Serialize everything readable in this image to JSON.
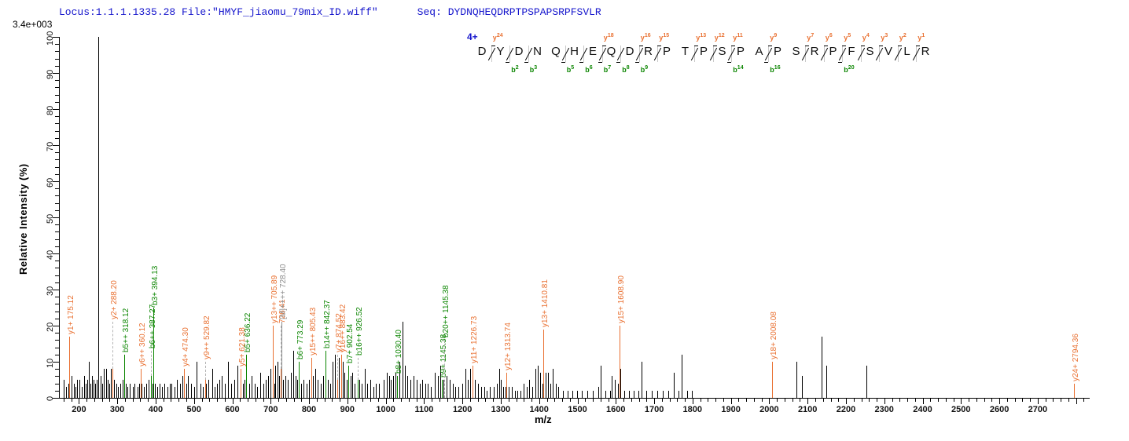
{
  "header": {
    "locus_file": "Locus:1.1.1.1335.28 File:\"HMYF_jiaomu_79mix_ID.wiff\"",
    "seq_label": "Seq:",
    "seq_value": "DYDNQHEQDRPTPSPAPSRPFSVLR"
  },
  "scale_label": "3.4e+003",
  "colors": {
    "header_text": "#1414cc",
    "y_ion": "#e97132",
    "b_ion": "#0b8500",
    "precursor": "#8c8c8c",
    "peak": "#000000",
    "axis": "#000000",
    "charge": "#1414cc",
    "connector": "#b4b4b4"
  },
  "peptide": {
    "charge_label": "4+",
    "residues": [
      "D",
      "Y",
      "D",
      "N",
      "Q",
      "H",
      "E",
      "Q",
      "D",
      "R",
      "P",
      "T",
      "P",
      "S",
      "P",
      "A",
      "P",
      "S",
      "R",
      "P",
      "F",
      "S",
      "V",
      "L",
      "R"
    ],
    "y_ions": [
      {
        "boundary": 1,
        "name": "y",
        "num": "24"
      },
      {
        "boundary": 7,
        "name": "y",
        "num": "18"
      },
      {
        "boundary": 9,
        "name": "y",
        "num": "16"
      },
      {
        "boundary": 10,
        "name": "y",
        "num": "15"
      },
      {
        "boundary": 12,
        "name": "y",
        "num": "13"
      },
      {
        "boundary": 13,
        "name": "y",
        "num": "12"
      },
      {
        "boundary": 14,
        "name": "y",
        "num": "11"
      },
      {
        "boundary": 16,
        "name": "y",
        "num": "9"
      },
      {
        "boundary": 18,
        "name": "y",
        "num": "7"
      },
      {
        "boundary": 19,
        "name": "y",
        "num": "6"
      },
      {
        "boundary": 20,
        "name": "y",
        "num": "5"
      },
      {
        "boundary": 21,
        "name": "y",
        "num": "4"
      },
      {
        "boundary": 22,
        "name": "y",
        "num": "3"
      },
      {
        "boundary": 23,
        "name": "y",
        "num": "2"
      },
      {
        "boundary": 24,
        "name": "y",
        "num": "1"
      }
    ],
    "b_ions": [
      {
        "boundary": 2,
        "name": "b",
        "num": "2"
      },
      {
        "boundary": 3,
        "name": "b",
        "num": "3"
      },
      {
        "boundary": 5,
        "name": "b",
        "num": "5"
      },
      {
        "boundary": 6,
        "name": "b",
        "num": "6"
      },
      {
        "boundary": 7,
        "name": "b",
        "num": "7"
      },
      {
        "boundary": 8,
        "name": "b",
        "num": "8"
      },
      {
        "boundary": 9,
        "name": "b",
        "num": "9"
      },
      {
        "boundary": 14,
        "name": "b",
        "num": "14"
      },
      {
        "boundary": 16,
        "name": "b",
        "num": "16"
      },
      {
        "boundary": 20,
        "name": "b",
        "num": "20"
      }
    ]
  },
  "axes": {
    "x_label": "m/z",
    "y_label": "Relative Intensity (%)",
    "x_min": 148,
    "x_max": 2835,
    "y_min": 0,
    "y_max": 100,
    "x_major_step": 100,
    "x_minor_step": 20,
    "y_major_step": 10,
    "y_minor_step": 2,
    "x_first_label": 200,
    "x_last_label": 2700
  },
  "chart_data": {
    "type": "bar",
    "subtype": "ms2-centroid-spectrum",
    "title": "",
    "xlabel": "m/z",
    "ylabel": "Relative Intensity (%)",
    "xlim": [
      148,
      2835
    ],
    "ylim": [
      0,
      100
    ],
    "base_peak_intensity_label": "3.4e+003",
    "legend": "off",
    "grid": "off",
    "annotated_peaks": [
      {
        "mz": 175.12,
        "intensity": 17,
        "label": "y1+ 175.12",
        "series": "y"
      },
      {
        "mz": 288.2,
        "intensity": 8,
        "label": "y2+ 288.20",
        "series": "y",
        "dashed": true,
        "label_start": 21
      },
      {
        "mz": 318.12,
        "intensity": 12,
        "label": "b5++ 318.12",
        "series": "b"
      },
      {
        "mz": 360.12,
        "intensity": 8,
        "label": "y6++ 360.12",
        "series": "y"
      },
      {
        "mz": 387.27,
        "intensity": 6,
        "label": "b6++ 387.27",
        "series": "b",
        "dashed": true,
        "label_start": 13
      },
      {
        "mz": 394.13,
        "intensity": 25,
        "label": "b3+ 394.13",
        "series": "b"
      },
      {
        "mz": 474.3,
        "intensity": 8,
        "label": "y4+ 474.30",
        "series": "y"
      },
      {
        "mz": 529.82,
        "intensity": 5,
        "label": "y9++ 529.82",
        "series": "y",
        "dashed": true,
        "label_start": 10
      },
      {
        "mz": 621.38,
        "intensity": 8,
        "label": "y5+ 621.38",
        "series": "y"
      },
      {
        "mz": 636.22,
        "intensity": 12,
        "label": "b5+ 636.22",
        "series": "b"
      },
      {
        "mz": 705.89,
        "intensity": 20,
        "label": "y13++ 705.89",
        "series": "y"
      },
      {
        "mz": 726.41,
        "intensity": 8,
        "label": "726.41",
        "series": "y",
        "dashed": true,
        "label_start": 20,
        "partially_obscured": true
      },
      {
        "mz": 728.4,
        "intensity": 21,
        "label": "[M]++++ 728.40",
        "series": "precursor"
      },
      {
        "mz": 773.29,
        "intensity": 10,
        "label": "b6+ 773.29",
        "series": "b"
      },
      {
        "mz": 805.43,
        "intensity": 11,
        "label": "y15++ 805.43",
        "series": "y"
      },
      {
        "mz": 842.37,
        "intensity": 13,
        "label": "b14++ 842.37",
        "series": "b"
      },
      {
        "mz": 874.52,
        "intensity": 5,
        "label": "y7+ 874.52",
        "series": "y",
        "dashed": true,
        "label_start": 12,
        "partially_obscured": true
      },
      {
        "mz": 883.42,
        "intensity": 12,
        "label": "y16++ 883.42",
        "series": "y"
      },
      {
        "mz": 902.54,
        "intensity": 9,
        "label": "b7+ 902.54",
        "series": "b"
      },
      {
        "mz": 926.52,
        "intensity": 5,
        "label": "b16++ 926.52",
        "series": "b",
        "dashed": true,
        "label_start": 11
      },
      {
        "mz": 1030.4,
        "intensity": 6,
        "label": "b8+ 1030.40",
        "series": "b"
      },
      {
        "mz": 1145.38,
        "intensity": 5,
        "label": "b9+ 1145.38",
        "series": "b"
      },
      {
        "mz": 1153.0,
        "intensity": 0,
        "label": "b20++ 1145.38",
        "series": "b",
        "label_start": 16,
        "label_only": true
      },
      {
        "mz": 1226.73,
        "intensity": 9,
        "label": "y11+ 1226.73",
        "series": "y"
      },
      {
        "mz": 1313.74,
        "intensity": 7,
        "label": "y12+ 1313.74",
        "series": "y"
      },
      {
        "mz": 1410.81,
        "intensity": 19,
        "label": "y13+ 1410.81",
        "series": "y"
      },
      {
        "mz": 1608.9,
        "intensity": 20,
        "label": "y15+ 1608.90",
        "series": "y"
      },
      {
        "mz": 2008.08,
        "intensity": 10,
        "label": "y18+ 2008.08",
        "series": "y"
      },
      {
        "mz": 2794.36,
        "intensity": 4,
        "label": "y24+ 2794.36",
        "series": "y"
      }
    ],
    "background_peaks": [
      [
        160,
        5
      ],
      [
        166,
        3
      ],
      [
        172,
        4
      ],
      [
        181,
        6
      ],
      [
        186,
        4
      ],
      [
        191,
        3
      ],
      [
        196,
        5
      ],
      [
        202,
        5
      ],
      [
        208,
        3
      ],
      [
        213,
        6
      ],
      [
        218,
        4
      ],
      [
        222,
        5
      ],
      [
        226,
        10
      ],
      [
        230,
        4
      ],
      [
        234,
        6
      ],
      [
        238,
        5
      ],
      [
        243,
        4
      ],
      [
        247,
        5
      ],
      [
        250,
        100
      ],
      [
        256,
        6
      ],
      [
        261,
        4
      ],
      [
        265,
        8
      ],
      [
        270,
        8
      ],
      [
        274,
        5
      ],
      [
        279,
        4
      ],
      [
        284,
        8
      ],
      [
        292,
        5
      ],
      [
        297,
        4
      ],
      [
        302,
        3
      ],
      [
        308,
        4
      ],
      [
        313,
        5
      ],
      [
        322,
        4
      ],
      [
        327,
        3
      ],
      [
        333,
        4
      ],
      [
        340,
        3
      ],
      [
        345,
        4
      ],
      [
        352,
        3
      ],
      [
        357,
        4
      ],
      [
        364,
        4
      ],
      [
        370,
        3
      ],
      [
        376,
        4
      ],
      [
        382,
        5
      ],
      [
        391,
        4
      ],
      [
        399,
        4
      ],
      [
        405,
        3
      ],
      [
        411,
        4
      ],
      [
        417,
        3
      ],
      [
        423,
        4
      ],
      [
        430,
        3
      ],
      [
        436,
        4
      ],
      [
        442,
        4
      ],
      [
        449,
        3
      ],
      [
        456,
        5
      ],
      [
        463,
        4
      ],
      [
        469,
        6
      ],
      [
        479,
        4
      ],
      [
        485,
        6
      ],
      [
        493,
        4
      ],
      [
        500,
        3
      ],
      [
        507,
        10
      ],
      [
        516,
        4
      ],
      [
        523,
        3
      ],
      [
        532,
        4
      ],
      [
        538,
        5
      ],
      [
        547,
        8
      ],
      [
        553,
        3
      ],
      [
        560,
        4
      ],
      [
        566,
        5
      ],
      [
        573,
        6
      ],
      [
        580,
        4
      ],
      [
        589,
        10
      ],
      [
        597,
        4
      ],
      [
        606,
        5
      ],
      [
        614,
        9
      ],
      [
        627,
        4
      ],
      [
        632,
        5
      ],
      [
        644,
        4
      ],
      [
        651,
        6
      ],
      [
        658,
        4
      ],
      [
        665,
        3
      ],
      [
        672,
        7
      ],
      [
        680,
        4
      ],
      [
        688,
        5
      ],
      [
        694,
        6
      ],
      [
        700,
        8
      ],
      [
        709,
        4
      ],
      [
        712,
        9
      ],
      [
        718,
        10
      ],
      [
        722,
        6
      ],
      [
        733,
        5
      ],
      [
        738,
        6
      ],
      [
        744,
        5
      ],
      [
        752,
        7
      ],
      [
        758,
        13
      ],
      [
        764,
        6
      ],
      [
        770,
        5
      ],
      [
        780,
        4
      ],
      [
        786,
        5
      ],
      [
        793,
        4
      ],
      [
        800,
        5
      ],
      [
        810,
        6
      ],
      [
        816,
        8
      ],
      [
        823,
        5
      ],
      [
        830,
        4
      ],
      [
        837,
        6
      ],
      [
        848,
        5
      ],
      [
        855,
        4
      ],
      [
        862,
        10
      ],
      [
        868,
        12
      ],
      [
        878,
        11
      ],
      [
        888,
        10
      ],
      [
        893,
        7
      ],
      [
        898,
        5
      ],
      [
        908,
        6
      ],
      [
        913,
        7
      ],
      [
        919,
        4
      ],
      [
        932,
        5
      ],
      [
        938,
        4
      ],
      [
        945,
        8
      ],
      [
        952,
        4
      ],
      [
        960,
        5
      ],
      [
        968,
        3
      ],
      [
        975,
        4
      ],
      [
        983,
        4
      ],
      [
        995,
        5
      ],
      [
        1002,
        7
      ],
      [
        1008,
        6
      ],
      [
        1014,
        5
      ],
      [
        1020,
        6
      ],
      [
        1026,
        7
      ],
      [
        1035,
        10
      ],
      [
        1043,
        21
      ],
      [
        1050,
        9
      ],
      [
        1057,
        6
      ],
      [
        1064,
        5
      ],
      [
        1072,
        6
      ],
      [
        1080,
        5
      ],
      [
        1088,
        4
      ],
      [
        1095,
        5
      ],
      [
        1103,
        4
      ],
      [
        1110,
        4
      ],
      [
        1118,
        3
      ],
      [
        1127,
        7
      ],
      [
        1135,
        6
      ],
      [
        1142,
        9
      ],
      [
        1150,
        5
      ],
      [
        1158,
        6
      ],
      [
        1166,
        5
      ],
      [
        1174,
        4
      ],
      [
        1182,
        3
      ],
      [
        1190,
        3
      ],
      [
        1199,
        4
      ],
      [
        1207,
        8
      ],
      [
        1213,
        5
      ],
      [
        1220,
        8
      ],
      [
        1232,
        5
      ],
      [
        1240,
        4
      ],
      [
        1248,
        3
      ],
      [
        1256,
        3
      ],
      [
        1264,
        2
      ],
      [
        1272,
        3
      ],
      [
        1281,
        3
      ],
      [
        1290,
        4
      ],
      [
        1295,
        8
      ],
      [
        1300,
        5
      ],
      [
        1306,
        3
      ],
      [
        1313,
        3
      ],
      [
        1320,
        3
      ],
      [
        1328,
        3
      ],
      [
        1336,
        2
      ],
      [
        1344,
        2
      ],
      [
        1352,
        2
      ],
      [
        1360,
        4
      ],
      [
        1367,
        3
      ],
      [
        1374,
        5
      ],
      [
        1382,
        3
      ],
      [
        1390,
        8
      ],
      [
        1396,
        9
      ],
      [
        1402,
        7
      ],
      [
        1408,
        4
      ],
      [
        1416,
        7
      ],
      [
        1424,
        7
      ],
      [
        1430,
        4
      ],
      [
        1436,
        8
      ],
      [
        1443,
        4
      ],
      [
        1450,
        3
      ],
      [
        1462,
        2
      ],
      [
        1474,
        2
      ],
      [
        1486,
        2
      ],
      [
        1498,
        2
      ],
      [
        1512,
        2
      ],
      [
        1526,
        2
      ],
      [
        1540,
        2
      ],
      [
        1554,
        3
      ],
      [
        1560,
        9
      ],
      [
        1572,
        2
      ],
      [
        1584,
        2
      ],
      [
        1590,
        6
      ],
      [
        1598,
        5
      ],
      [
        1606,
        4
      ],
      [
        1612,
        8
      ],
      [
        1622,
        2
      ],
      [
        1634,
        2
      ],
      [
        1646,
        2
      ],
      [
        1658,
        2
      ],
      [
        1666,
        10
      ],
      [
        1680,
        2
      ],
      [
        1694,
        2
      ],
      [
        1708,
        2
      ],
      [
        1722,
        2
      ],
      [
        1736,
        2
      ],
      [
        1752,
        7
      ],
      [
        1764,
        2
      ],
      [
        1772,
        12
      ],
      [
        1786,
        2
      ],
      [
        1798,
        2
      ],
      [
        2070,
        10
      ],
      [
        2086,
        6
      ],
      [
        2136,
        17
      ],
      [
        2148,
        9
      ],
      [
        2253,
        9
      ]
    ]
  }
}
